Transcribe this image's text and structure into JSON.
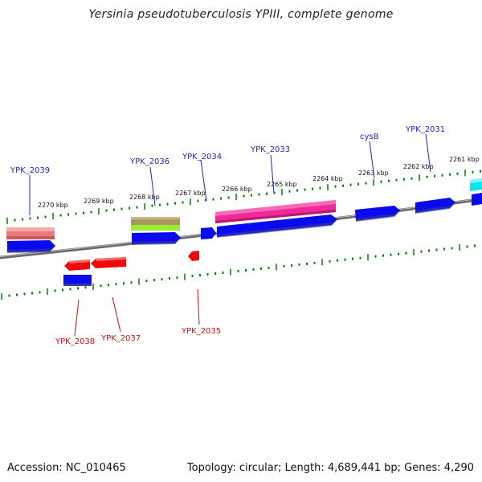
{
  "title": "Yersinia pseudotuberculosis YPIII, complete genome",
  "footer": {
    "accession": "Accession: NC_010465",
    "topology": "Topology: circular; Length: 4,689,441 bp; Genes: 4,290"
  },
  "colors": {
    "backbone": "#808080",
    "tick": "#0a7a0a",
    "forward_label": "#1f28b4",
    "reverse_label": "#cc0f0f",
    "cds_forward": "#0a0aef",
    "cds_reverse": "#ee0a0a",
    "rrna_magenta": "#f0299a",
    "olive": "#a89860",
    "lime": "#99ee33",
    "salmon": "#ea7a7a",
    "cyan": "#00e8f0"
  },
  "kbp_ticks": [
    "2270 kbp",
    "2269 kbp",
    "2268 kbp",
    "2267 kbp",
    "2266 kbp",
    "2265 kbp",
    "2264 kbp",
    "2263 kbp",
    "2262 kbp",
    "2261 kbp"
  ],
  "forward_labels": [
    "YPK_2039",
    "YPK_2036",
    "YPK_2034",
    "YPK_2033",
    "cysB",
    "YPK_2031"
  ],
  "reverse_labels": [
    "YPK_2038",
    "YPK_2037",
    "YPK_2035"
  ]
}
